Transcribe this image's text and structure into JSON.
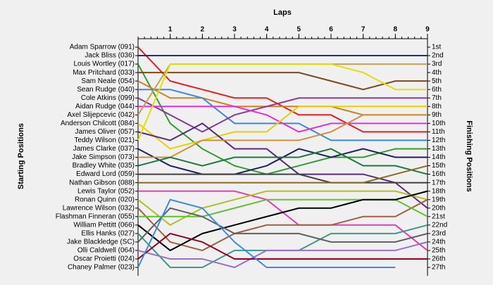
{
  "chart_data": {
    "type": "line",
    "title": "Laps",
    "y_label": "Starting Positions",
    "y2_label": "Finishing Positions",
    "x": [
      0,
      1,
      2,
      3,
      4,
      5,
      6,
      7,
      8,
      9
    ],
    "xlim": [
      0,
      9
    ],
    "xticks": [
      1,
      2,
      3,
      4,
      5,
      6,
      7,
      8,
      9
    ],
    "ylim": [
      1,
      27
    ],
    "y_inverted": true,
    "yticks": [
      {
        "value": 1,
        "label": "1st"
      },
      {
        "value": 2,
        "label": "2nd"
      },
      {
        "value": 3,
        "label": "3rd"
      },
      {
        "value": 4,
        "label": "4th"
      },
      {
        "value": 5,
        "label": "5th"
      },
      {
        "value": 6,
        "label": "6th"
      },
      {
        "value": 7,
        "label": "7th"
      },
      {
        "value": 8,
        "label": "8th"
      },
      {
        "value": 9,
        "label": "9th"
      },
      {
        "value": 10,
        "label": "10th"
      },
      {
        "value": 11,
        "label": "11th"
      },
      {
        "value": 12,
        "label": "12th"
      },
      {
        "value": 13,
        "label": "13th"
      },
      {
        "value": 14,
        "label": "14th"
      },
      {
        "value": 15,
        "label": "15th"
      },
      {
        "value": 16,
        "label": "16th"
      },
      {
        "value": 17,
        "label": "17th"
      },
      {
        "value": 18,
        "label": "18th"
      },
      {
        "value": 19,
        "label": "19th"
      },
      {
        "value": 20,
        "label": "20th"
      },
      {
        "value": 21,
        "label": "21st"
      },
      {
        "value": 22,
        "label": "22nd"
      },
      {
        "value": 23,
        "label": "23rd"
      },
      {
        "value": 24,
        "label": "24th"
      },
      {
        "value": 25,
        "label": "25th"
      },
      {
        "value": 26,
        "label": "26th"
      },
      {
        "value": 27,
        "label": "27th"
      }
    ],
    "series": [
      {
        "name": "Adam Sparrow (091)",
        "color": "#e02020",
        "values": [
          1,
          5,
          6,
          7,
          7,
          9,
          9,
          11,
          11,
          11
        ]
      },
      {
        "name": "Jack Bliss (036)",
        "color": "#1c2a9c",
        "values": [
          2,
          2,
          2,
          2,
          2,
          2,
          2,
          2,
          2,
          2
        ]
      },
      {
        "name": "Louis Wortley (017)",
        "color": "#2e9e2e",
        "values": [
          3,
          10,
          13,
          15,
          16,
          15,
          14,
          14,
          13,
          13
        ]
      },
      {
        "name": "Max Pritchard (033)",
        "color": "#7a4a1a",
        "values": [
          4,
          4,
          4,
          4,
          4,
          4,
          5,
          6,
          5,
          5
        ]
      },
      {
        "name": "Sam Neale (054)",
        "color": "#d08020",
        "values": [
          5,
          7,
          7,
          8,
          8,
          8,
          8,
          9,
          9,
          9
        ]
      },
      {
        "name": "Sean Rudge (040)",
        "color": "#3a8ad8",
        "values": [
          6,
          6,
          7,
          10,
          10,
          10,
          12,
          12,
          12,
          12
        ]
      },
      {
        "name": "Cole Atkins (099)",
        "color": "#8a3a9a",
        "values": [
          7,
          9,
          11,
          9,
          8,
          7,
          7,
          7,
          7,
          7
        ]
      },
      {
        "name": "Aidan Rudge (044)",
        "color": "#e030e0",
        "values": [
          8,
          8,
          8,
          8,
          9,
          11,
          10,
          10,
          10,
          10
        ]
      },
      {
        "name": "Axel Slijepcevic (042)",
        "color": "#c8a050",
        "values": [
          9,
          3,
          3,
          3,
          3,
          3,
          3,
          3,
          3,
          3
        ]
      },
      {
        "name": "Anderson Chilcott (084)",
        "color": "#e8d000",
        "values": [
          10,
          13,
          12,
          11,
          11,
          8,
          8,
          8,
          8,
          8
        ]
      },
      {
        "name": "James Oliver (057)",
        "color": "#5a2a7a",
        "values": [
          11,
          12,
          10,
          13,
          13,
          16,
          16,
          16,
          17,
          20
        ]
      },
      {
        "name": "Teddy Wilson (021)",
        "color": "#e0e000",
        "values": [
          12,
          3,
          3,
          3,
          3,
          3,
          3,
          4,
          6,
          6
        ]
      },
      {
        "name": "James Clarke (037)",
        "color": "#202060",
        "values": [
          13,
          15,
          16,
          16,
          15,
          13,
          14,
          13,
          14,
          14
        ]
      },
      {
        "name": "Jake Simpson (073)",
        "color": "#d09040",
        "values": [
          14,
          14,
          12,
          12,
          12,
          12,
          11,
          9,
          9,
          9
        ]
      },
      {
        "name": "Bradley White (035)",
        "color": "#1a7a3a",
        "values": [
          15,
          14,
          15,
          14,
          14,
          14,
          13,
          15,
          15,
          16
        ]
      },
      {
        "name": "Edward Lord (059)",
        "color": "#404040",
        "values": [
          16,
          16,
          16,
          16,
          16,
          16,
          17,
          17,
          17,
          17
        ]
      },
      {
        "name": "Nathan Gibson (088)",
        "color": "#8a6a20",
        "values": [
          17,
          17,
          17,
          17,
          17,
          17,
          17,
          17,
          16,
          15
        ]
      },
      {
        "name": "Lewis Taylor (052)",
        "color": "#e040b0",
        "values": [
          18,
          18,
          18,
          18,
          19,
          22,
          22,
          22,
          22,
          25
        ]
      },
      {
        "name": "Ronan Quinn (020)",
        "color": "#b0c020",
        "values": [
          19,
          22,
          20,
          19,
          18,
          18,
          18,
          18,
          18,
          19
        ]
      },
      {
        "name": "Lawrence Wilson (032)",
        "color": "#a06040",
        "values": [
          20,
          24,
          25,
          23,
          22,
          22,
          22,
          21,
          21,
          19
        ]
      },
      {
        "name": "Flashman Finneran (055)",
        "color": "#60c030",
        "values": [
          21,
          21,
          21,
          20,
          19,
          19,
          19,
          19,
          19,
          21
        ]
      },
      {
        "name": "William Pettitt (066)",
        "color": "#000000",
        "values": [
          22,
          25,
          23,
          22,
          21,
          20,
          20,
          19,
          19,
          18
        ]
      },
      {
        "name": "Ellis Hanks (027)",
        "color": "#3a9a8a",
        "values": [
          23,
          27,
          27,
          25,
          25,
          25,
          23,
          23,
          23,
          22
        ]
      },
      {
        "name": "Jake Blackledge (SC)",
        "color": "#606060",
        "values": [
          24,
          20,
          21,
          23,
          23,
          23,
          24,
          24,
          24,
          23
        ]
      },
      {
        "name": "Olli Caldwell (064)",
        "color": "#9a70c8",
        "values": [
          25,
          26,
          26,
          27,
          25,
          25,
          25,
          25,
          25,
          24
        ]
      },
      {
        "name": "Oscar Proietti (024)",
        "color": "#900020",
        "values": [
          26,
          23,
          24,
          26,
          26,
          26,
          26,
          26,
          26,
          26
        ]
      },
      {
        "name": "Chaney Palmer (023)",
        "color": "#3a8ae8",
        "values": [
          27,
          19,
          20,
          24,
          27,
          27,
          27,
          27,
          27,
          null
        ]
      }
    ]
  }
}
